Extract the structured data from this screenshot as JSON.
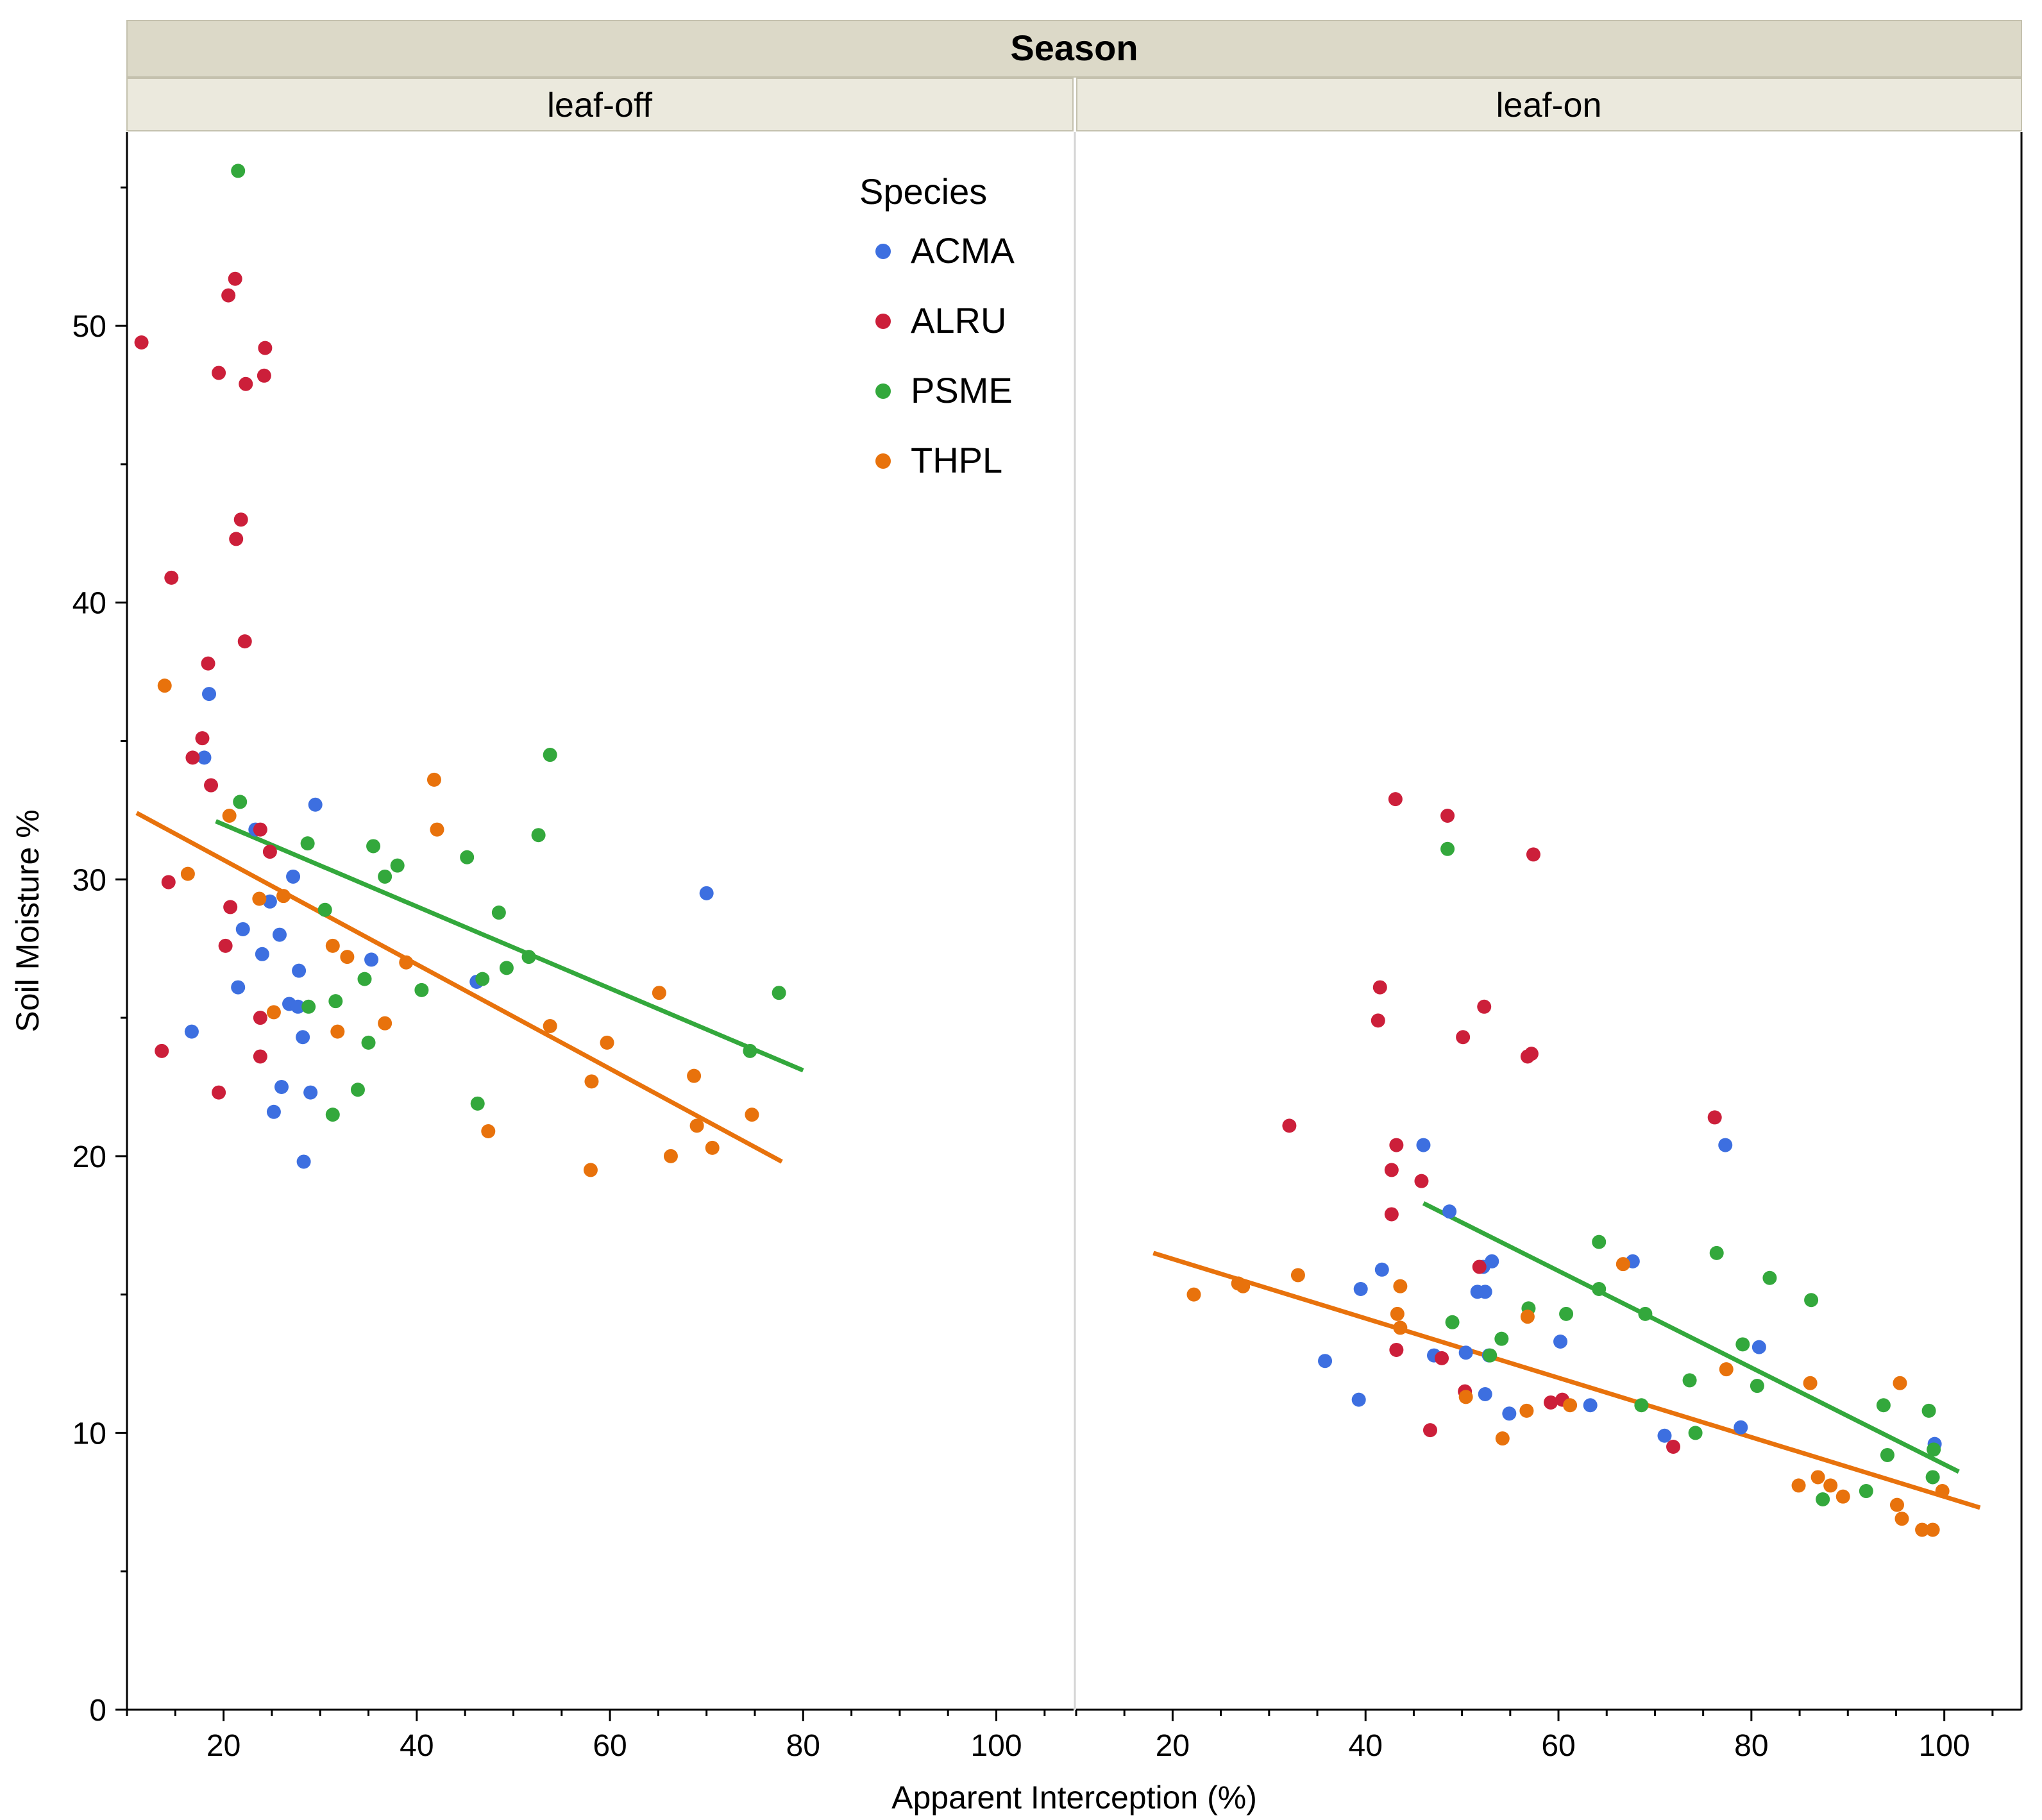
{
  "chart_data": {
    "type": "scatter",
    "facet_header": "Season",
    "xlabel": "Apparent Interception (%)",
    "ylabel": "Soil Moisture %",
    "ylim": [
      0,
      57
    ],
    "y_ticks": [
      0,
      10,
      20,
      30,
      40,
      50
    ],
    "legend": {
      "title": "Species",
      "placement": "top-right of first panel"
    },
    "colors": {
      "ACMA": "#3d6fe0",
      "ALRU": "#cc1f3a",
      "PSME": "#33a83c",
      "THPL": "#e8720c"
    },
    "panels": [
      {
        "label": "leaf-off",
        "xlim": [
          10,
          108
        ],
        "x_ticks": [
          20,
          40,
          60,
          80,
          100
        ],
        "series": [
          {
            "name": "ACMA",
            "points": [
              [
                18.5,
                36.7
              ],
              [
                18,
                34.4
              ],
              [
                23.3,
                31.8
              ],
              [
                29.5,
                32.7
              ],
              [
                27.2,
                30.1
              ],
              [
                22,
                28.2
              ],
              [
                24.8,
                29.2
              ],
              [
                25.8,
                28
              ],
              [
                24,
                27.3
              ],
              [
                21.5,
                26.1
              ],
              [
                26.8,
                25.5
              ],
              [
                27.8,
                26.7
              ],
              [
                27.7,
                25.4
              ],
              [
                28.2,
                24.3
              ],
              [
                16.7,
                24.5
              ],
              [
                35.3,
                27.1
              ],
              [
                46.2,
                26.3
              ],
              [
                26,
                22.5
              ],
              [
                29,
                22.3
              ],
              [
                25.2,
                21.6
              ],
              [
                28.3,
                19.8
              ],
              [
                70,
                29.5
              ]
            ]
          },
          {
            "name": "ALRU",
            "points": [
              [
                11.5,
                49.4
              ],
              [
                21.2,
                51.7
              ],
              [
                20.5,
                51.1
              ],
              [
                19.5,
                48.3
              ],
              [
                24.3,
                49.2
              ],
              [
                22.3,
                47.9
              ],
              [
                24.2,
                48.2
              ],
              [
                14.6,
                40.9
              ],
              [
                21.8,
                43
              ],
              [
                21.3,
                42.3
              ],
              [
                22.2,
                38.6
              ],
              [
                18.4,
                37.8
              ],
              [
                17.8,
                35.1
              ],
              [
                16.8,
                34.4
              ],
              [
                18.7,
                33.4
              ],
              [
                23.8,
                31.8
              ],
              [
                24.8,
                31
              ],
              [
                14.3,
                29.9
              ],
              [
                20.7,
                29
              ],
              [
                20.2,
                27.6
              ],
              [
                23.8,
                25
              ],
              [
                23.8,
                23.6
              ],
              [
                13.6,
                23.8
              ],
              [
                19.5,
                22.3
              ]
            ]
          },
          {
            "name": "PSME",
            "points": [
              [
                21.5,
                55.6
              ],
              [
                21.7,
                32.8
              ],
              [
                28.7,
                31.3
              ],
              [
                35.5,
                31.2
              ],
              [
                38,
                30.5
              ],
              [
                45.2,
                30.8
              ],
              [
                53.8,
                34.5
              ],
              [
                52.6,
                31.6
              ],
              [
                36.7,
                30.1
              ],
              [
                30.5,
                28.9
              ],
              [
                48.5,
                28.8
              ],
              [
                51.6,
                27.2
              ],
              [
                49.3,
                26.8
              ],
              [
                46.8,
                26.4
              ],
              [
                34.6,
                26.4
              ],
              [
                40.5,
                26
              ],
              [
                31.6,
                25.6
              ],
              [
                28.8,
                25.4
              ],
              [
                35,
                24.1
              ],
              [
                33.9,
                22.4
              ],
              [
                31.3,
                21.5
              ],
              [
                46.3,
                21.9
              ],
              [
                74.5,
                23.8
              ],
              [
                77.5,
                25.9
              ]
            ]
          },
          {
            "name": "THPL",
            "points": [
              [
                13.9,
                37
              ],
              [
                20.6,
                32.3
              ],
              [
                16.3,
                30.2
              ],
              [
                23.7,
                29.3
              ],
              [
                26.2,
                29.4
              ],
              [
                31.3,
                27.6
              ],
              [
                32.8,
                27.2
              ],
              [
                38.9,
                27
              ],
              [
                41.8,
                33.6
              ],
              [
                42.1,
                31.8
              ],
              [
                25.2,
                25.2
              ],
              [
                31.8,
                24.5
              ],
              [
                36.7,
                24.8
              ],
              [
                53.8,
                24.7
              ],
              [
                59.7,
                24.1
              ],
              [
                65.1,
                25.9
              ],
              [
                58.1,
                22.7
              ],
              [
                68.7,
                22.9
              ],
              [
                74.7,
                21.5
              ],
              [
                47.4,
                20.9
              ],
              [
                69,
                21.1
              ],
              [
                70.6,
                20.3
              ],
              [
                66.3,
                20
              ],
              [
                58,
                19.5
              ]
            ]
          }
        ],
        "trendlines": [
          {
            "name": "PSME",
            "from": [
              19.2,
              32.1
            ],
            "to": [
              80,
              23.1
            ]
          },
          {
            "name": "THPL",
            "from": [
              11,
              32.4
            ],
            "to": [
              77.8,
              19.8
            ]
          }
        ]
      },
      {
        "label": "leaf-on",
        "xlim": [
          10,
          108
        ],
        "x_ticks": [
          20,
          40,
          60,
          80,
          100
        ],
        "series": [
          {
            "name": "ACMA",
            "points": [
              [
                46,
                20.4
              ],
              [
                48.7,
                18
              ],
              [
                77.3,
                20.4
              ],
              [
                41.7,
                15.9
              ],
              [
                39.5,
                15.2
              ],
              [
                51.6,
                15.1
              ],
              [
                52.4,
                15.1
              ],
              [
                52.2,
                16
              ],
              [
                53.1,
                16.2
              ],
              [
                67.7,
                16.2
              ],
              [
                60.2,
                13.3
              ],
              [
                80.8,
                13.1
              ],
              [
                35.8,
                12.6
              ],
              [
                47.1,
                12.8
              ],
              [
                50.4,
                12.9
              ],
              [
                52.8,
                12.8
              ],
              [
                39.3,
                11.2
              ],
              [
                52.4,
                11.4
              ],
              [
                54.9,
                10.7
              ],
              [
                63.3,
                11
              ],
              [
                71,
                9.9
              ],
              [
                78.9,
                10.2
              ],
              [
                99,
                9.6
              ]
            ]
          },
          {
            "name": "ALRU",
            "points": [
              [
                43.1,
                32.9
              ],
              [
                48.5,
                32.3
              ],
              [
                57.4,
                30.9
              ],
              [
                41.5,
                26.1
              ],
              [
                52.3,
                25.4
              ],
              [
                41.3,
                24.9
              ],
              [
                50.1,
                24.3
              ],
              [
                56.8,
                23.6
              ],
              [
                57.2,
                23.7
              ],
              [
                32.1,
                21.1
              ],
              [
                76.2,
                21.4
              ],
              [
                43.2,
                20.4
              ],
              [
                42.7,
                19.5
              ],
              [
                45.8,
                19.1
              ],
              [
                42.7,
                17.9
              ],
              [
                51.8,
                16
              ],
              [
                43.2,
                13
              ],
              [
                47.9,
                12.7
              ],
              [
                50.3,
                11.5
              ],
              [
                59.2,
                11.1
              ],
              [
                60.4,
                11.2
              ],
              [
                46.7,
                10.1
              ],
              [
                71.9,
                9.5
              ]
            ]
          },
          {
            "name": "PSME",
            "points": [
              [
                48.5,
                31.1
              ],
              [
                64.2,
                16.9
              ],
              [
                76.4,
                16.5
              ],
              [
                81.9,
                15.6
              ],
              [
                86.2,
                14.8
              ],
              [
                64.2,
                15.2
              ],
              [
                56.9,
                14.5
              ],
              [
                60.8,
                14.3
              ],
              [
                69,
                14.3
              ],
              [
                49,
                14
              ],
              [
                54.1,
                13.4
              ],
              [
                52.9,
                12.8
              ],
              [
                79.1,
                13.2
              ],
              [
                73.6,
                11.9
              ],
              [
                80.6,
                11.7
              ],
              [
                93.7,
                11
              ],
              [
                98.4,
                10.8
              ],
              [
                68.6,
                11
              ],
              [
                74.2,
                10
              ],
              [
                94.1,
                9.2
              ],
              [
                98.9,
                9.4
              ],
              [
                98.8,
                8.4
              ],
              [
                87.4,
                7.6
              ],
              [
                91.9,
                7.9
              ]
            ]
          },
          {
            "name": "THPL",
            "points": [
              [
                22.2,
                15
              ],
              [
                26.8,
                15.4
              ],
              [
                27.3,
                15.3
              ],
              [
                33,
                15.7
              ],
              [
                43.6,
                15.3
              ],
              [
                43.3,
                14.3
              ],
              [
                43.6,
                13.8
              ],
              [
                56.8,
                14.2
              ],
              [
                66.7,
                16.1
              ],
              [
                77.4,
                12.3
              ],
              [
                86.1,
                11.8
              ],
              [
                95.4,
                11.8
              ],
              [
                50.4,
                11.3
              ],
              [
                56.7,
                10.8
              ],
              [
                61.2,
                11
              ],
              [
                54.2,
                9.8
              ],
              [
                84.9,
                8.1
              ],
              [
                86.9,
                8.4
              ],
              [
                88.2,
                8.1
              ],
              [
                89.5,
                7.7
              ],
              [
                95.1,
                7.4
              ],
              [
                95.6,
                6.9
              ],
              [
                97.7,
                6.5
              ],
              [
                98.8,
                6.5
              ],
              [
                99.8,
                7.9
              ]
            ]
          }
        ],
        "trendlines": [
          {
            "name": "PSME",
            "from": [
              46,
              18.3
            ],
            "to": [
              101.5,
              8.6
            ]
          },
          {
            "name": "THPL",
            "from": [
              18,
              16.5
            ],
            "to": [
              103.7,
              7.3
            ]
          }
        ]
      }
    ]
  }
}
